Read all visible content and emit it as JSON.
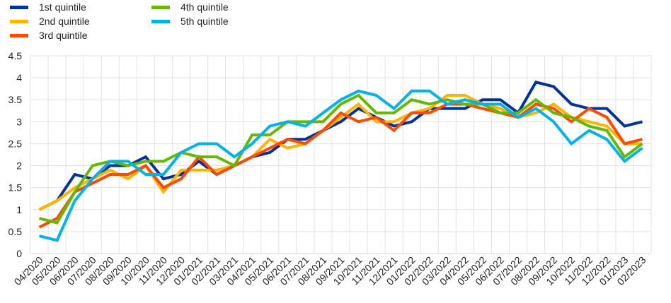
{
  "chart_data": {
    "type": "line",
    "categories": [
      "04/2020",
      "05/2020",
      "06/2020",
      "07/2020",
      "08/2020",
      "09/2020",
      "10/2020",
      "11/2020",
      "12/2020",
      "01/2021",
      "02/2021",
      "03/2021",
      "04/2021",
      "05/2021",
      "06/2021",
      "07/2021",
      "08/2021",
      "09/2021",
      "10/2021",
      "11/2021",
      "12/2021",
      "01/2022",
      "02/2022",
      "03/2022",
      "04/2022",
      "05/2022",
      "06/2022",
      "07/2022",
      "08/2022",
      "09/2022",
      "10/2022",
      "11/2022",
      "12/2022",
      "01/2023",
      "02/2023"
    ],
    "ylim": [
      0,
      4.5
    ],
    "yticks": [
      "0",
      "0.5",
      "1",
      "1.5",
      "2",
      "2.5",
      "3",
      "3.5",
      "4",
      "4.5"
    ],
    "grid": true,
    "legend_position": "top-left",
    "series": [
      {
        "name": "1st quintile",
        "color": "#003299",
        "values": [
          1.0,
          1.2,
          1.8,
          1.7,
          2.0,
          2.0,
          2.2,
          1.7,
          1.8,
          2.1,
          1.8,
          2.0,
          2.2,
          2.3,
          2.6,
          2.6,
          2.8,
          3.0,
          3.3,
          3.1,
          2.9,
          3.0,
          3.3,
          3.3,
          3.3,
          3.5,
          3.5,
          3.2,
          3.9,
          3.8,
          3.4,
          3.3,
          3.3,
          2.9,
          3.0
        ]
      },
      {
        "name": "2nd quintile",
        "color": "#FFB400",
        "values": [
          1.0,
          1.2,
          1.5,
          1.7,
          1.9,
          1.7,
          2.0,
          1.4,
          1.9,
          1.9,
          1.9,
          2.0,
          2.2,
          2.6,
          2.4,
          2.5,
          2.8,
          3.1,
          3.4,
          3.0,
          3.0,
          3.2,
          3.3,
          3.6,
          3.6,
          3.4,
          3.3,
          3.1,
          3.2,
          3.4,
          3.1,
          3.0,
          2.9,
          2.5,
          2.5
        ]
      },
      {
        "name": "3rd quintile",
        "color": "#FF4B00",
        "values": [
          0.6,
          0.8,
          1.4,
          1.6,
          1.8,
          1.8,
          2.0,
          1.5,
          1.7,
          2.2,
          1.8,
          2.0,
          2.2,
          2.4,
          2.6,
          2.5,
          2.8,
          3.2,
          3.0,
          3.1,
          2.8,
          3.2,
          3.2,
          3.4,
          3.4,
          3.3,
          3.2,
          3.1,
          3.4,
          3.3,
          3.0,
          3.3,
          3.1,
          2.5,
          2.6
        ]
      },
      {
        "name": "4th quintile",
        "color": "#65B800",
        "values": [
          0.8,
          0.7,
          1.4,
          2.0,
          2.1,
          2.0,
          2.1,
          2.1,
          2.3,
          2.2,
          2.2,
          2.0,
          2.7,
          2.7,
          3.0,
          3.0,
          3.0,
          3.4,
          3.6,
          3.2,
          3.2,
          3.5,
          3.4,
          3.5,
          3.4,
          3.4,
          3.2,
          3.2,
          3.5,
          3.2,
          3.1,
          2.9,
          2.8,
          2.2,
          2.5
        ]
      },
      {
        "name": "5th quintile",
        "color": "#00B1EA",
        "values": [
          0.4,
          0.3,
          1.2,
          1.7,
          2.1,
          2.1,
          1.8,
          1.8,
          2.3,
          2.5,
          2.5,
          2.2,
          2.5,
          2.9,
          3.0,
          2.9,
          3.2,
          3.5,
          3.7,
          3.6,
          3.3,
          3.7,
          3.7,
          3.4,
          3.5,
          3.4,
          3.4,
          3.1,
          3.3,
          3.0,
          2.5,
          2.8,
          2.6,
          2.1,
          2.4
        ]
      }
    ]
  }
}
